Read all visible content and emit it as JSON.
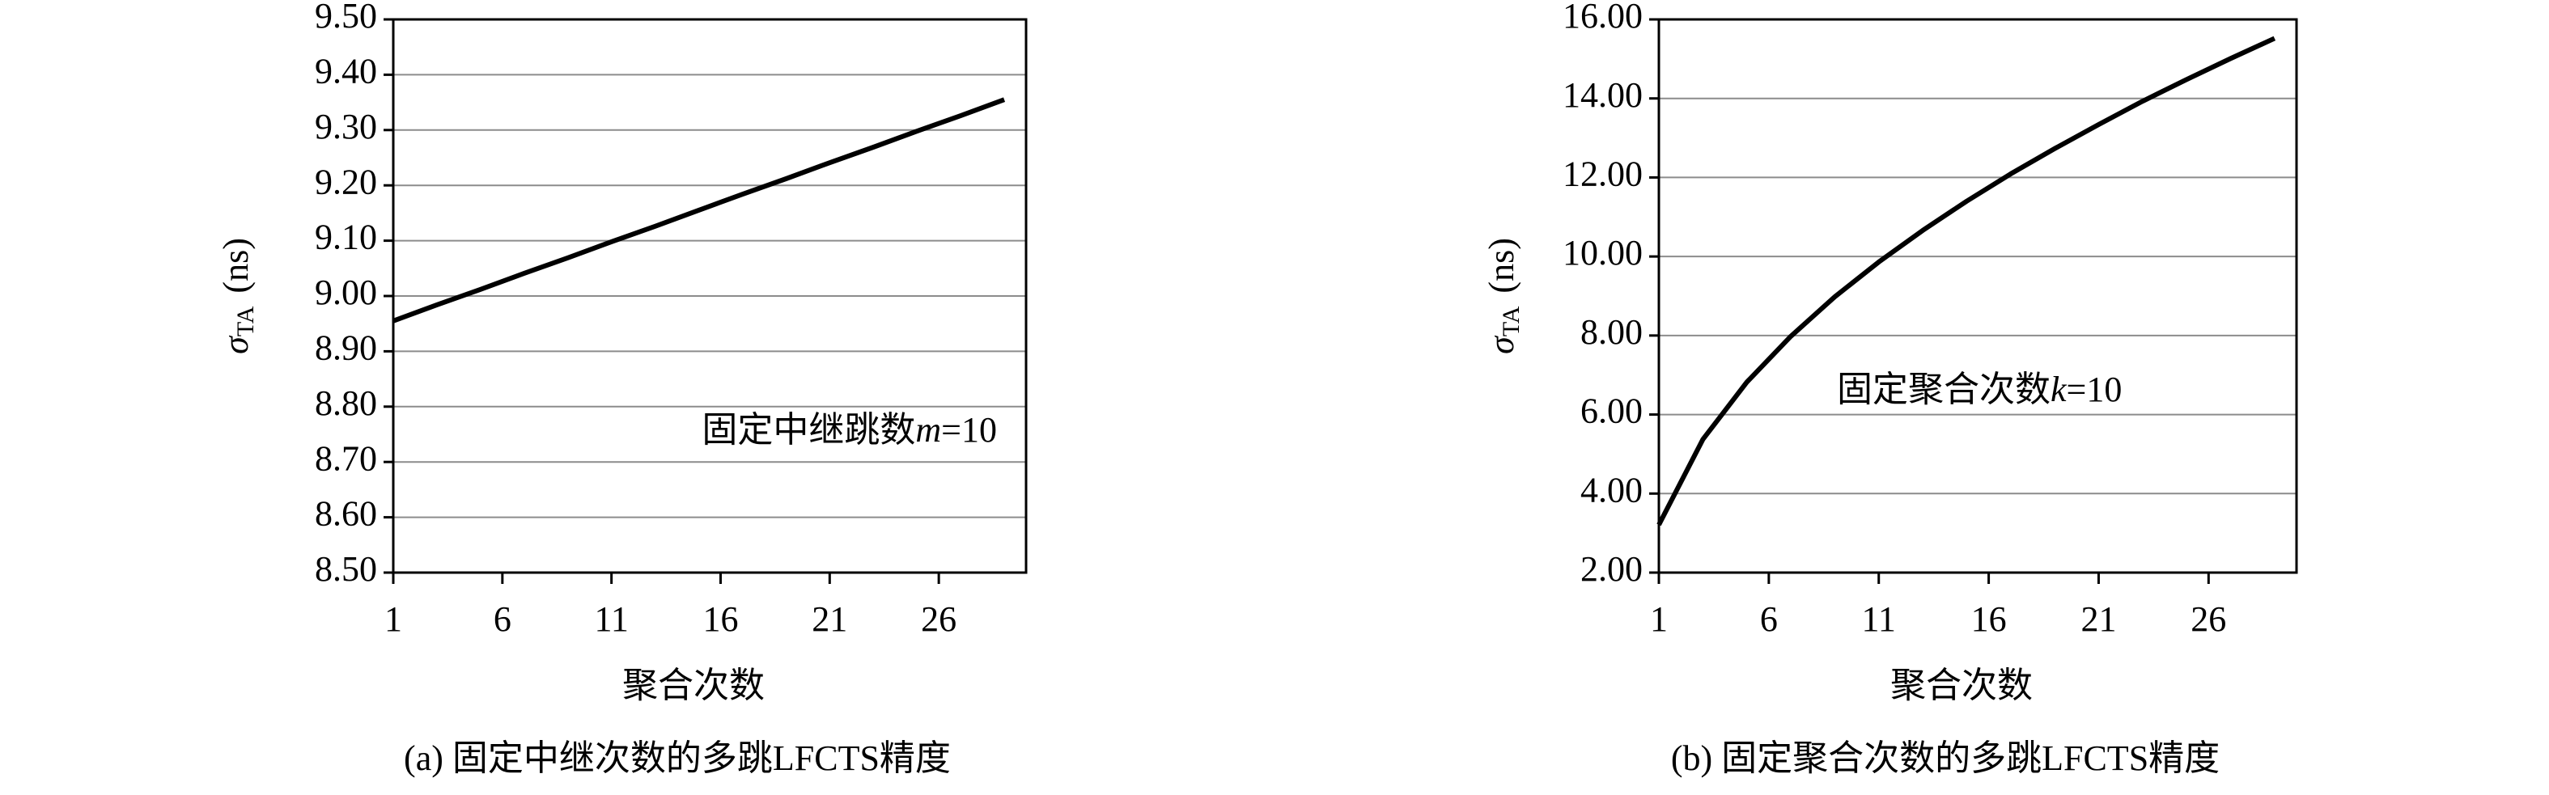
{
  "chart_data": [
    {
      "type": "line",
      "caption": "(a) 固定中继次数的多跳LFCTS精度",
      "xlabel": "聚合次数",
      "ylabel": {
        "symbol": "σ",
        "subscript": "TA",
        "unit": "(ns)"
      },
      "annotation": {
        "text": "固定中继跳数",
        "variable": "m",
        "rest": "=10"
      },
      "x": [
        1,
        3,
        5,
        7,
        9,
        11,
        13,
        15,
        17,
        19,
        21,
        23,
        25,
        27,
        29
      ],
      "series": [
        {
          "color": "#000000",
          "values": [
            8.955,
            8.984,
            9.012,
            9.041,
            9.069,
            9.098,
            9.126,
            9.155,
            9.184,
            9.212,
            9.241,
            9.269,
            9.298,
            9.326,
            9.355
          ]
        }
      ],
      "xlim": [
        1,
        30
      ],
      "xticks": [
        1,
        6,
        11,
        16,
        21,
        26
      ],
      "ylim": [
        8.5,
        9.5
      ],
      "yticks": [
        {
          "value": 8.5,
          "label": "8.50"
        },
        {
          "value": 8.6,
          "label": "8.60"
        },
        {
          "value": 8.7,
          "label": "8.70"
        },
        {
          "value": 8.8,
          "label": "8.80"
        },
        {
          "value": 8.9,
          "label": "8.90"
        },
        {
          "value": 9.0,
          "label": "9.00"
        },
        {
          "value": 9.1,
          "label": "9.10"
        },
        {
          "value": 9.2,
          "label": "9.20"
        },
        {
          "value": 9.3,
          "label": "9.30"
        },
        {
          "value": 9.4,
          "label": "9.40"
        },
        {
          "value": 9.5,
          "label": "9.50"
        }
      ],
      "grid": true
    },
    {
      "type": "line",
      "caption": "(b) 固定聚合次数的多跳LFCTS精度",
      "xlabel": "聚合次数",
      "ylabel": {
        "symbol": "σ",
        "subscript": "TA",
        "unit": "(ns)"
      },
      "annotation": {
        "text": "固定聚合次数",
        "variable": "k",
        "rest": "=10"
      },
      "x": [
        1,
        3,
        5,
        7,
        9,
        11,
        13,
        15,
        17,
        19,
        21,
        23,
        25,
        27,
        29
      ],
      "series": [
        {
          "color": "#000000",
          "values": [
            3.21,
            5.37,
            6.82,
            7.98,
            8.98,
            9.86,
            10.66,
            11.4,
            12.09,
            12.73,
            13.34,
            13.93,
            14.48,
            15.01,
            15.52
          ]
        }
      ],
      "xlim": [
        1,
        30
      ],
      "xticks": [
        1,
        6,
        11,
        16,
        21,
        26
      ],
      "ylim": [
        2,
        16
      ],
      "yticks": [
        {
          "value": 2,
          "label": "2.00"
        },
        {
          "value": 4,
          "label": "4.00"
        },
        {
          "value": 6,
          "label": "6.00"
        },
        {
          "value": 8,
          "label": "8.00"
        },
        {
          "value": 10,
          "label": "10.00"
        },
        {
          "value": 12,
          "label": "12.00"
        },
        {
          "value": 14,
          "label": "14.00"
        },
        {
          "value": 16,
          "label": "16.00"
        }
      ],
      "grid": true
    }
  ]
}
